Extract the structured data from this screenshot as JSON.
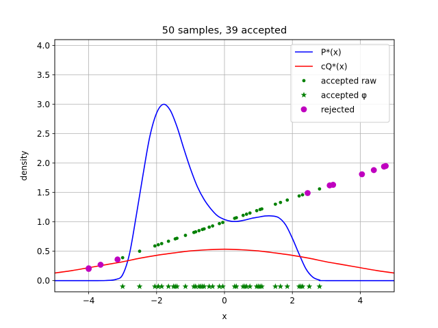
{
  "chart_data": {
    "type": "scatter",
    "title": "50 samples, 39 accepted",
    "xlabel": "x",
    "ylabel": "density",
    "xlim": [
      -5,
      5
    ],
    "ylim": [
      -0.19,
      4.1
    ],
    "xticks": [
      -4,
      -2,
      0,
      2,
      4
    ],
    "xtick_labels": [
      "−4",
      "−2",
      "0",
      "2",
      "4"
    ],
    "yticks": [
      0.0,
      0.5,
      1.0,
      1.5,
      2.0,
      2.5,
      3.0,
      3.5,
      4.0
    ],
    "ytick_labels": [
      "0.0",
      "0.5",
      "1.0",
      "1.5",
      "2.0",
      "2.5",
      "3.0",
      "3.5",
      "4.0"
    ],
    "grid": true,
    "legend_position": "top-right",
    "series": [
      {
        "name": "P*(x)",
        "kind": "line",
        "color": "#0000ff",
        "points": [
          [
            -5,
            0
          ],
          [
            -4,
            0
          ],
          [
            -3.5,
            0.002
          ],
          [
            -3.2,
            0.02
          ],
          [
            -3,
            0.1
          ],
          [
            -2.8,
            0.45
          ],
          [
            -2.6,
            1.1
          ],
          [
            -2.4,
            1.8
          ],
          [
            -2.2,
            2.45
          ],
          [
            -2,
            2.85
          ],
          [
            -1.8,
            3.0
          ],
          [
            -1.6,
            2.9
          ],
          [
            -1.4,
            2.62
          ],
          [
            -1.2,
            2.25
          ],
          [
            -1,
            1.9
          ],
          [
            -0.8,
            1.6
          ],
          [
            -0.6,
            1.38
          ],
          [
            -0.4,
            1.22
          ],
          [
            -0.2,
            1.1
          ],
          [
            0,
            1.04
          ],
          [
            0.2,
            1.01
          ],
          [
            0.4,
            1.01
          ],
          [
            0.6,
            1.03
          ],
          [
            0.8,
            1.06
          ],
          [
            1,
            1.08
          ],
          [
            1.2,
            1.1
          ],
          [
            1.4,
            1.1
          ],
          [
            1.6,
            1.07
          ],
          [
            1.8,
            0.95
          ],
          [
            2,
            0.72
          ],
          [
            2.2,
            0.45
          ],
          [
            2.4,
            0.2
          ],
          [
            2.6,
            0.06
          ],
          [
            2.8,
            0.01
          ],
          [
            3,
            0.0
          ],
          [
            5,
            0
          ]
        ]
      },
      {
        "name": "cQ*(x)",
        "kind": "line",
        "color": "#ff0000",
        "points": [
          [
            -5,
            0.13
          ],
          [
            -4.5,
            0.17
          ],
          [
            -4,
            0.22
          ],
          [
            -3.5,
            0.27
          ],
          [
            -3,
            0.32
          ],
          [
            -2.5,
            0.38
          ],
          [
            -2,
            0.43
          ],
          [
            -1.5,
            0.47
          ],
          [
            -1,
            0.505
          ],
          [
            -0.5,
            0.525
          ],
          [
            0,
            0.535
          ],
          [
            0.5,
            0.525
          ],
          [
            1,
            0.505
          ],
          [
            1.5,
            0.47
          ],
          [
            2,
            0.43
          ],
          [
            2.5,
            0.38
          ],
          [
            3,
            0.32
          ],
          [
            3.5,
            0.27
          ],
          [
            4,
            0.22
          ],
          [
            4.5,
            0.17
          ],
          [
            5,
            0.13
          ]
        ]
      },
      {
        "name": "accepted raw",
        "kind": "scatter",
        "marker": "small-dot",
        "color": "#008000",
        "points": [
          [
            -3.0,
            0.39
          ],
          [
            -2.5,
            0.5
          ],
          [
            -2.05,
            0.59
          ],
          [
            -1.95,
            0.61
          ],
          [
            -1.85,
            0.63
          ],
          [
            -1.65,
            0.67
          ],
          [
            -1.45,
            0.71
          ],
          [
            -1.4,
            0.72
          ],
          [
            -1.15,
            0.77
          ],
          [
            -0.9,
            0.82
          ],
          [
            -0.85,
            0.83
          ],
          [
            -0.75,
            0.85
          ],
          [
            -0.65,
            0.87
          ],
          [
            -0.6,
            0.88
          ],
          [
            -0.45,
            0.91
          ],
          [
            -0.35,
            0.93
          ],
          [
            -0.15,
            0.97
          ],
          [
            -0.05,
            0.99
          ],
          [
            0.3,
            1.06
          ],
          [
            0.35,
            1.07
          ],
          [
            0.55,
            1.11
          ],
          [
            0.65,
            1.13
          ],
          [
            0.75,
            1.15
          ],
          [
            0.95,
            1.19
          ],
          [
            1.05,
            1.21
          ],
          [
            1.1,
            1.22
          ],
          [
            1.5,
            1.3
          ],
          [
            1.65,
            1.33
          ],
          [
            1.85,
            1.37
          ],
          [
            2.2,
            1.44
          ],
          [
            2.3,
            1.46
          ],
          [
            2.8,
            1.56
          ]
        ]
      },
      {
        "name": "accepted φ",
        "kind": "scatter",
        "marker": "star",
        "color": "#008000",
        "y": -0.1,
        "x": [
          -3.0,
          -2.5,
          -2.05,
          -1.95,
          -1.85,
          -1.65,
          -1.45,
          -1.4,
          -1.15,
          -0.9,
          -0.85,
          -0.75,
          -0.65,
          -0.6,
          -0.45,
          -0.35,
          -0.15,
          -0.05,
          0.3,
          0.35,
          0.55,
          0.65,
          0.75,
          0.95,
          1.05,
          1.1,
          1.5,
          1.65,
          1.85,
          2.2,
          2.3,
          2.8,
          2.25,
          2.5,
          -0.7,
          -1.5,
          0.6,
          1.0,
          -1.95
        ]
      },
      {
        "name": "rejected",
        "kind": "scatter",
        "marker": "large-dot",
        "color": "#bf00bf",
        "points": [
          [
            -4.0,
            0.2
          ],
          [
            -3.65,
            0.27
          ],
          [
            -3.15,
            0.36
          ],
          [
            2.45,
            1.49
          ],
          [
            3.1,
            1.62
          ],
          [
            3.2,
            1.63
          ],
          [
            4.05,
            1.81
          ],
          [
            4.4,
            1.88
          ],
          [
            4.7,
            1.94
          ],
          [
            4.75,
            1.95
          ],
          [
            -4.0,
            0.21
          ]
        ]
      }
    ]
  }
}
